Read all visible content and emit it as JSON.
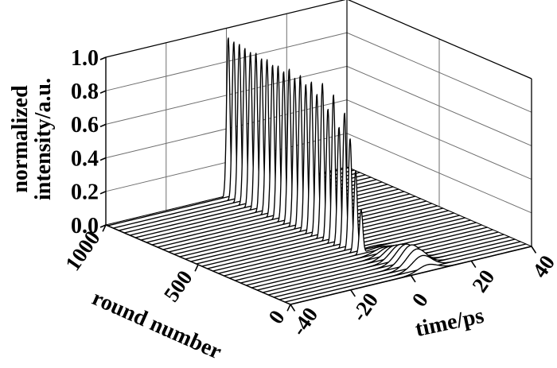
{
  "figure": {
    "background": "#ffffff",
    "line_color": "#000000",
    "grid_color": "#6e6e6e"
  },
  "chart_data": {
    "type": "line",
    "variant": "3d-waterfall",
    "title": "",
    "xlabel": "time/ps",
    "ylabel": "round number",
    "zlabel": "normalized intensity/a.u.",
    "zlabel_lines": [
      "normalized",
      "intensity/a.u."
    ],
    "xlim": [
      -40,
      40
    ],
    "ylim": [
      0,
      1000
    ],
    "zlim": [
      0.0,
      1.0
    ],
    "x_tick_values": [
      -40,
      -20,
      0,
      20,
      40
    ],
    "x_tick_labels": [
      "-40",
      "-20",
      "0",
      "20",
      "40"
    ],
    "y_tick_values": [
      1000,
      500,
      0
    ],
    "y_tick_labels": [
      "1000",
      "500",
      "0"
    ],
    "z_tick_values": [
      1.0,
      0.8,
      0.6,
      0.4,
      0.2,
      0.0
    ],
    "z_tick_labels": [
      "1.0",
      "0.8",
      "0.6",
      "0.4",
      "0.2",
      "0.0"
    ],
    "grid": {
      "left_wall_time_lines": [
        -20,
        0,
        20
      ],
      "right_wall_round_lines": [
        500
      ],
      "z_lines": [
        0.2,
        0.4,
        0.6,
        0.8
      ]
    },
    "legend": null,
    "pulse_features": {
      "spike": {
        "center_ps": 0,
        "sigma_ps": 0.55
      },
      "bump": {
        "center_ps": 5.5,
        "sigma_ps": 3.2
      }
    },
    "series": [
      {
        "round": 0,
        "spike": 0.0,
        "bump": 0.04
      },
      {
        "round": 30,
        "spike": 0.0,
        "bump": 0.08
      },
      {
        "round": 60,
        "spike": 0.0,
        "bump": 0.105
      },
      {
        "round": 90,
        "spike": 0.0,
        "bump": 0.115
      },
      {
        "round": 120,
        "spike": 0.0,
        "bump": 0.105
      },
      {
        "round": 150,
        "spike": 0.0,
        "bump": 0.09
      },
      {
        "round": 180,
        "spike": 0.0,
        "bump": 0.07
      },
      {
        "round": 210,
        "spike": 0.0,
        "bump": 0.048
      },
      {
        "round": 240,
        "spike": 0.0,
        "bump": 0.03
      },
      {
        "round": 270,
        "spike": 0.26,
        "bump": 0.016
      },
      {
        "round": 300,
        "spike": 0.48,
        "bump": 0.008
      },
      {
        "round": 330,
        "spike": 0.66,
        "bump": 0.0
      },
      {
        "round": 360,
        "spike": 0.8,
        "bump": 0.0
      },
      {
        "round": 390,
        "spike": 0.7,
        "bump": 0.0
      },
      {
        "round": 420,
        "spike": 0.88,
        "bump": 0.0
      },
      {
        "round": 450,
        "spike": 0.78,
        "bump": 0.0
      },
      {
        "round": 480,
        "spike": 0.92,
        "bump": 0.0
      },
      {
        "round": 510,
        "spike": 0.84,
        "bump": 0.0
      },
      {
        "round": 540,
        "spike": 0.9,
        "bump": 0.0
      },
      {
        "round": 570,
        "spike": 0.87,
        "bump": 0.0
      },
      {
        "round": 600,
        "spike": 0.91,
        "bump": 0.0
      },
      {
        "round": 630,
        "spike": 0.88,
        "bump": 0.0
      },
      {
        "round": 660,
        "spike": 0.92,
        "bump": 0.0
      },
      {
        "round": 690,
        "spike": 0.89,
        "bump": 0.0
      },
      {
        "round": 720,
        "spike": 0.91,
        "bump": 0.0
      },
      {
        "round": 750,
        "spike": 0.9,
        "bump": 0.0
      },
      {
        "round": 780,
        "spike": 0.92,
        "bump": 0.0
      },
      {
        "round": 810,
        "spike": 0.91,
        "bump": 0.0
      },
      {
        "round": 840,
        "spike": 0.93,
        "bump": 0.0
      },
      {
        "round": 870,
        "spike": 0.92,
        "bump": 0.0
      },
      {
        "round": 900,
        "spike": 0.93,
        "bump": 0.0
      },
      {
        "round": 930,
        "spike": 0.94,
        "bump": 0.0
      },
      {
        "round": 960,
        "spike": 0.94,
        "bump": 0.0
      },
      {
        "round": 990,
        "spike": 0.95,
        "bump": 0.0
      }
    ]
  }
}
